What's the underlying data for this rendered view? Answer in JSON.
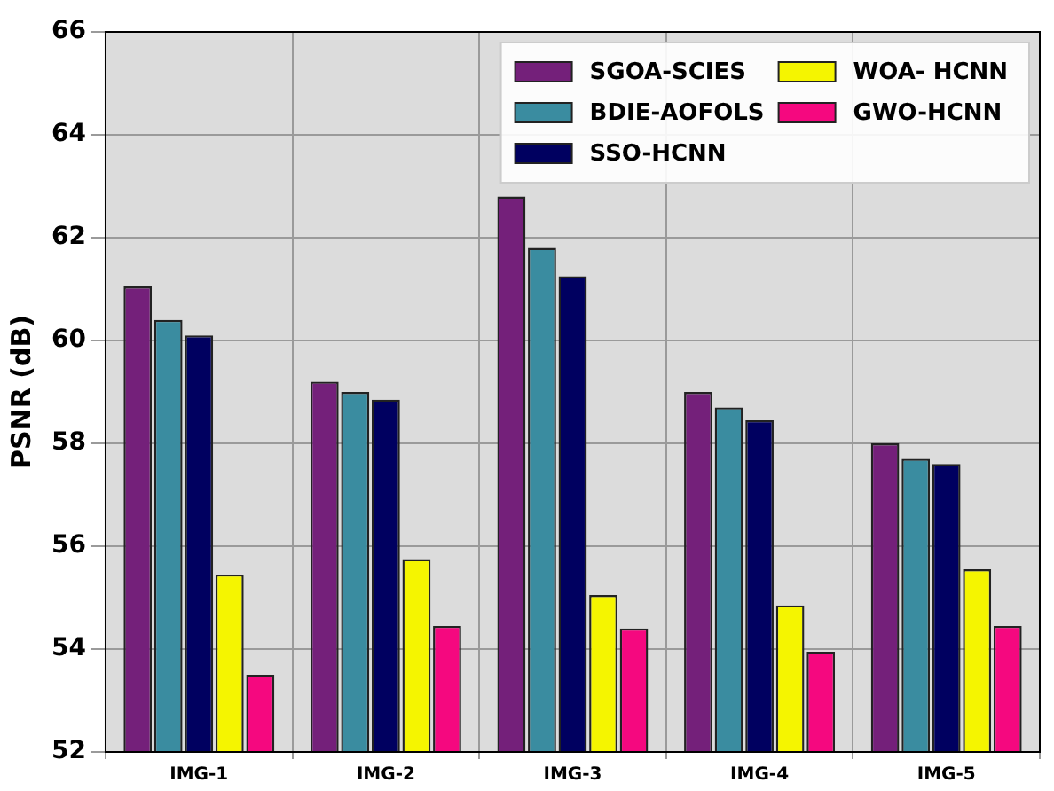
{
  "chart_data": {
    "type": "bar",
    "ylabel": "PSNR (dB)",
    "categories": [
      "IMG-1",
      "IMG-2",
      "IMG-3",
      "IMG-4",
      "IMG-5"
    ],
    "series": [
      {
        "name": "SGOA-SCIES",
        "color": "#74207a",
        "values": [
          61.05,
          59.2,
          62.8,
          59.0,
          58.0
        ]
      },
      {
        "name": "BDIE-AOFOLS",
        "color": "#3a8ca0",
        "values": [
          60.4,
          59.0,
          61.8,
          58.7,
          57.7
        ]
      },
      {
        "name": "SSO-HCNN",
        "color": "#000060",
        "values": [
          60.1,
          58.85,
          61.25,
          58.45,
          57.6
        ]
      },
      {
        "name": "WOA- HCNN",
        "color": "#f5f500",
        "values": [
          55.45,
          55.75,
          55.05,
          54.85,
          55.55
        ]
      },
      {
        "name": "GWO-HCNN",
        "color": "#f5087f",
        "values": [
          53.5,
          54.45,
          54.4,
          53.95,
          54.45
        ]
      }
    ],
    "ylim": [
      52,
      66
    ],
    "yticks": [
      52,
      54,
      56,
      58,
      60,
      62,
      64,
      66
    ],
    "grid": true,
    "legend": "top right"
  }
}
